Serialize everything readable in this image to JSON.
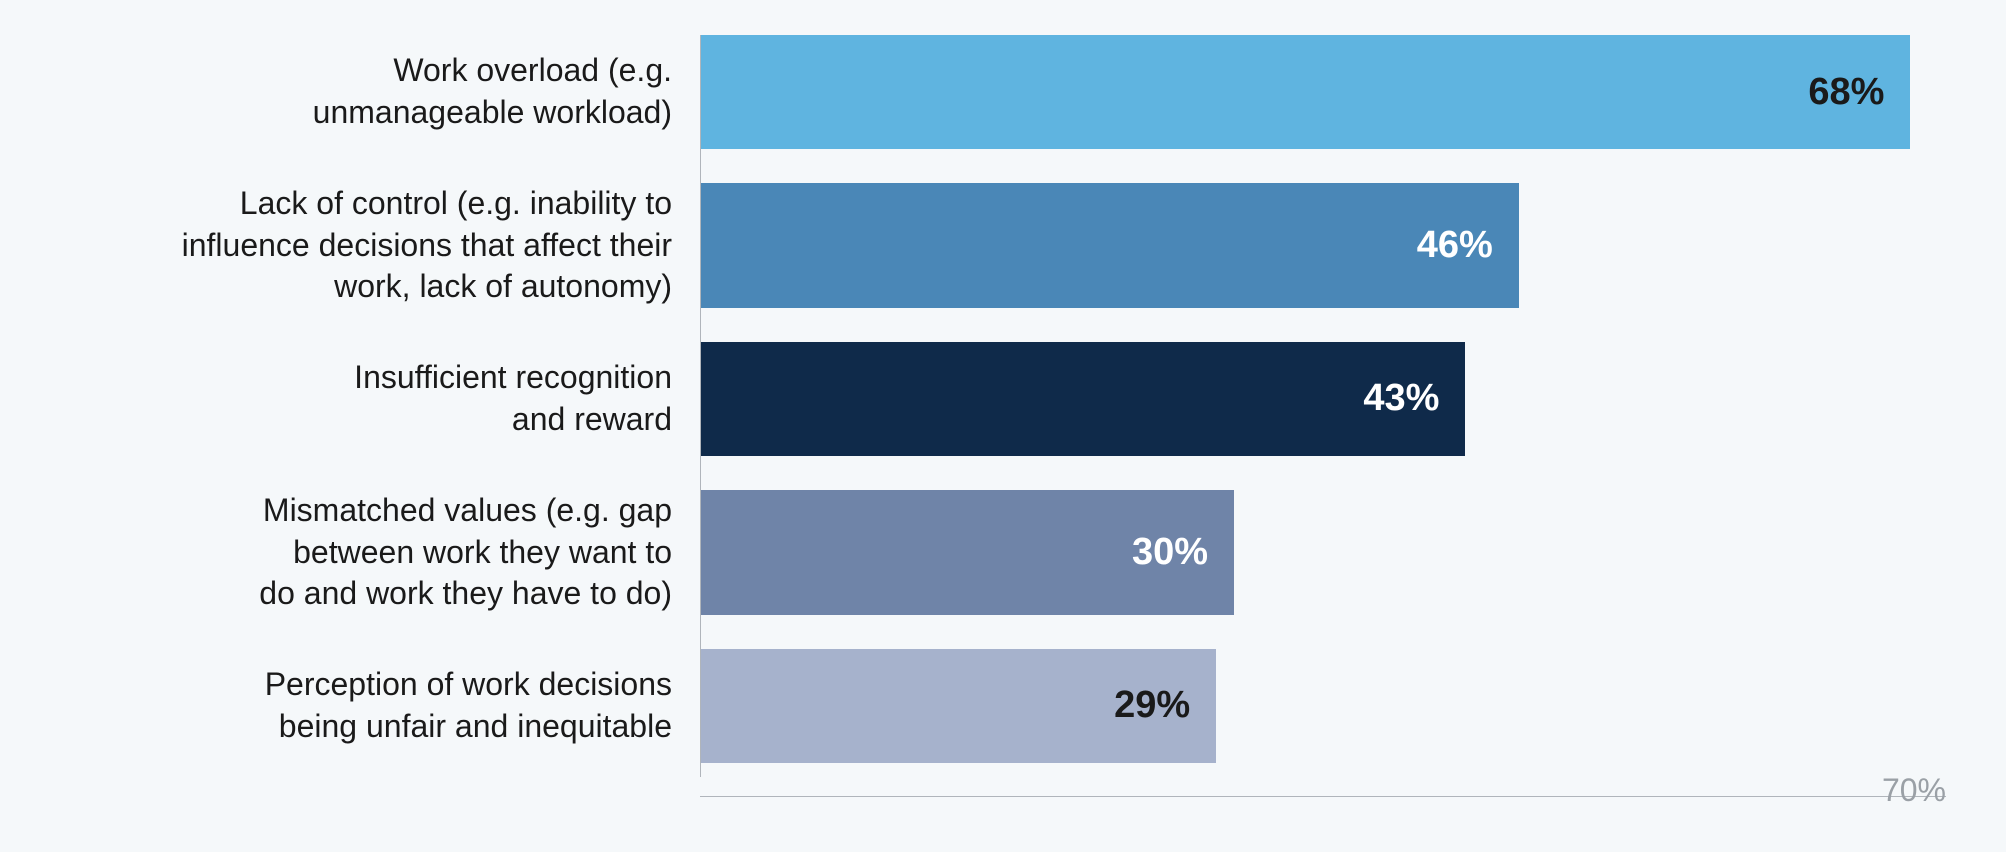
{
  "chart": {
    "type": "bar-horizontal",
    "background_color": "#f5f8fa",
    "axis_line_color": "#b0b5bb",
    "baseline_color": "#b0b5bb",
    "x_max": 70,
    "x_max_label": "70%",
    "x_max_label_color": "#9aa0a6",
    "x_max_label_fontsize": 32,
    "label_color": "#1a1a1a",
    "label_fontsize": 32,
    "value_fontsize": 38,
    "bars": [
      {
        "label": "Work overload (e.g.\nunmanageable workload)",
        "value": 68,
        "value_label": "68%",
        "bar_color": "#5fb4e0",
        "value_color": "#1a1a1a"
      },
      {
        "label": "Lack of control (e.g. inability to\ninfluence decisions that affect their\nwork, lack of autonomy)",
        "value": 46,
        "value_label": "46%",
        "bar_color": "#4a87b7",
        "value_color": "#ffffff"
      },
      {
        "label": "Insufficient recognition\nand reward",
        "value": 43,
        "value_label": "43%",
        "bar_color": "#0f2a4a",
        "value_color": "#ffffff"
      },
      {
        "label": "Mismatched values (e.g. gap\nbetween work they want to\ndo and work they have to do)",
        "value": 30,
        "value_label": "30%",
        "bar_color": "#6f84a8",
        "value_color": "#ffffff"
      },
      {
        "label": "Perception of work decisions\nbeing unfair and inequitable",
        "value": 29,
        "value_label": "29%",
        "bar_color": "#a6b2cc",
        "value_color": "#1a1a1a"
      }
    ]
  }
}
